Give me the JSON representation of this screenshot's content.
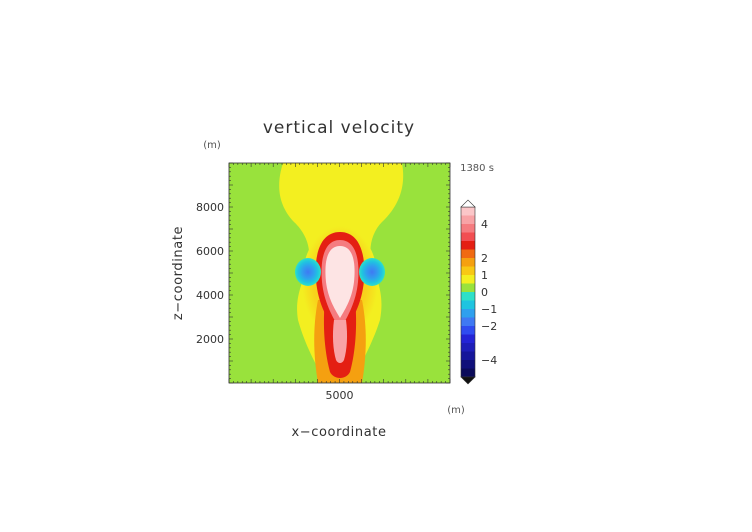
{
  "chart_data": {
    "type": "heatmap",
    "title": "vertical velocity",
    "xlabel": "x−coordinate",
    "ylabel": "z−coordinate",
    "x_unit": "(m)",
    "y_unit": "(m)",
    "time_label": "1380 s",
    "xlim": [
      0,
      10000
    ],
    "ylim": [
      0,
      10000
    ],
    "x_ticks": [
      5000
    ],
    "y_ticks": [
      2000,
      4000,
      6000,
      8000
    ],
    "grid": false,
    "colorbar": {
      "position": "right",
      "levels": [
        -5,
        -4.5,
        -4,
        -3.5,
        -3,
        -2.5,
        -2,
        -1.5,
        -1,
        -0.5,
        0,
        0.5,
        1,
        1.5,
        2,
        2.5,
        3,
        3.5,
        4,
        4.5,
        5
      ],
      "colors": [
        "#0b0b5a",
        "#10107a",
        "#16169a",
        "#1e1eb8",
        "#2424d6",
        "#2f4cf0",
        "#3f79f3",
        "#2fa0ee",
        "#1fc4e0",
        "#2fe0c8",
        "#99e23c",
        "#f3ef20",
        "#f8c814",
        "#f5a010",
        "#f06a12",
        "#e41f13",
        "#f24e52",
        "#f57c80",
        "#f8a3a6",
        "#fbc6c8",
        "#fde4e4"
      ],
      "tick_labels": [
        "4",
        "2",
        "1",
        "0",
        "−1",
        "−2",
        "−4"
      ],
      "extend": "both"
    },
    "features": [
      {
        "kind": "updraft-core",
        "x": 5000,
        "z": 4800,
        "w_max": 5
      },
      {
        "kind": "updraft-stem",
        "x": 5000,
        "z": 1500,
        "w": 3
      },
      {
        "kind": "downdraft-left",
        "x": 3700,
        "z": 5000,
        "w": -1.5
      },
      {
        "kind": "downdraft-right",
        "x": 6300,
        "z": 5000,
        "w": -1.5
      },
      {
        "kind": "weak-upward-plume",
        "x": 5000,
        "z": 8500,
        "w": 0.3
      }
    ]
  }
}
